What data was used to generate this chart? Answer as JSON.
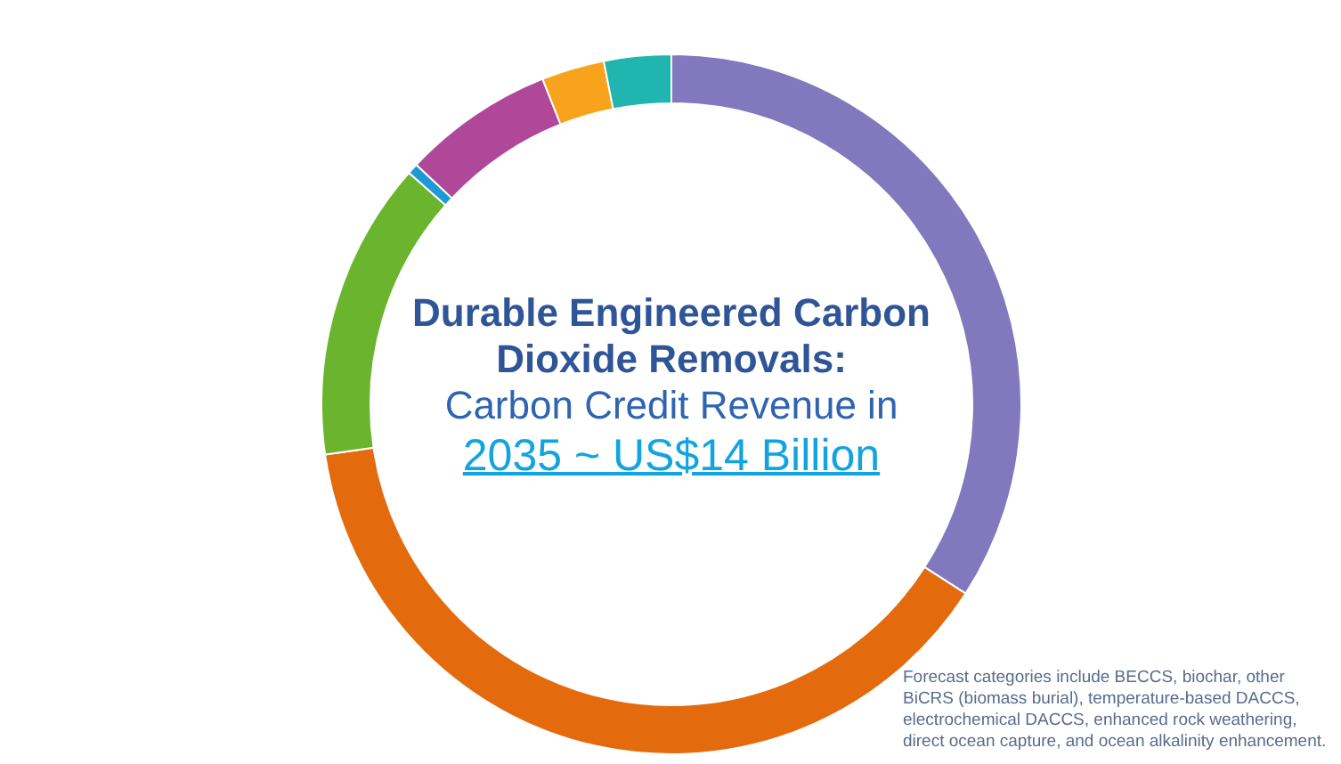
{
  "chart_data": {
    "type": "donut",
    "title": "Durable Engineered Carbon Dioxide Removals:",
    "subtitle": "Carbon Credit Revenue in",
    "categories": [
      null,
      null,
      null,
      null,
      null,
      null,
      null
    ],
    "values": [
      34.1,
      38.6,
      13.8,
      0.5,
      7.0,
      2.9,
      3.1
    ],
    "colors": [
      "#8278bd",
      "#e36b0e",
      "#6bb42e",
      "#1b9ad6",
      "#b0489a",
      "#f9a21b",
      "#20b5ae"
    ],
    "legend": false,
    "annotations": [
      "2035 ~ US$14 Billion",
      "Forecast categories include BECCS, biochar, other BiCRS (biomass burial), temperature-based DACCS, electrochemical DACCS, enhanced rock weathering, direct ocean capture, and ocean alkalinity enhancement."
    ]
  }
}
